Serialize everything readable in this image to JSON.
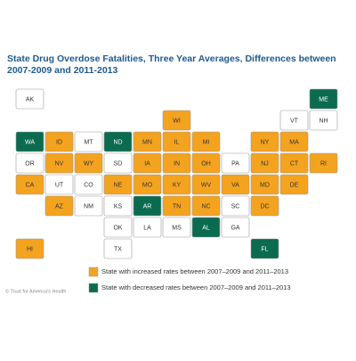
{
  "title": "State Drug Overdose Fatalities, Three Year Averages, Differences between 2007-2009 and 2011-2013",
  "credit": "© Trust for America's Health",
  "groups": [
    {
      "label": "State with increased rates between 2007–2009 and 2011–2013",
      "color": "#f4a31f",
      "states": [
        "ID",
        "NV",
        "CA",
        "AZ",
        "WY",
        "NE",
        "MN",
        "WI",
        "IA",
        "MO",
        "IL",
        "IN",
        "MI",
        "OH",
        "KY",
        "TN",
        "WV",
        "VA",
        "NC",
        "MD",
        "DE",
        "NJ",
        "NY",
        "CT",
        "RI",
        "MA",
        "HI",
        "DC"
      ]
    },
    {
      "label": "State with decreased rates between 2007–2009 and 2011–2013",
      "color": "#0b6b4f",
      "states": [
        "WA",
        "ND",
        "AR",
        "AL",
        "FL",
        "ME"
      ]
    },
    {
      "color": "#ffffff",
      "states": [
        "OR",
        "MT",
        "UT",
        "CO",
        "NM",
        "SD",
        "KS",
        "OK",
        "TX",
        "LA",
        "MS",
        "GA",
        "SC",
        "PA",
        "VT",
        "NH",
        "AK"
      ]
    }
  ]
}
